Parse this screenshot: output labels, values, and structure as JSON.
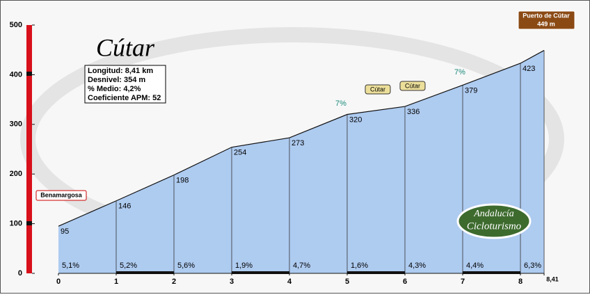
{
  "chart_data": {
    "type": "area",
    "title": "Cútar",
    "info": [
      "Longitud: 8,41 km",
      "Desnivel: 354 m",
      "% Medio: 4,2%",
      "Coeficiente APM: 52"
    ],
    "x": [
      0,
      1,
      2,
      3,
      4,
      5,
      6,
      7,
      8,
      8.41
    ],
    "series": [
      {
        "name": "Cútar",
        "color": "#aecbf0",
        "values": [
          95,
          146,
          198,
          254,
          273,
          320,
          336,
          379,
          423,
          449
        ]
      }
    ],
    "gradients": [
      {
        "value": 5.1,
        "label": "5,1%"
      },
      {
        "value": 5.2,
        "label": "5,2%"
      },
      {
        "value": 5.6,
        "label": "5,6%"
      },
      {
        "value": 1.9,
        "label": "1,9%"
      },
      {
        "value": 4.7,
        "label": "4,7%"
      },
      {
        "value": 1.6,
        "label": "1,6%"
      },
      {
        "value": 4.3,
        "label": "4,3%"
      },
      {
        "value": 4.4,
        "label": "4,4%"
      },
      {
        "value": 6.3,
        "label": "6,3%"
      }
    ],
    "xlim": [
      0,
      8.41
    ],
    "xticks": [
      0,
      1,
      2,
      3,
      4,
      5,
      6,
      7,
      8,
      {
        "value": 8.41,
        "label": "8,41"
      }
    ],
    "ylim": [
      0,
      500
    ],
    "yticks": [
      0,
      100,
      200,
      300,
      400,
      500
    ],
    "start_sign": "Benamargosa",
    "end_sign": [
      "Puerto de Cútar",
      "449 m"
    ],
    "town_signs": [
      "Cútar",
      "Cútar"
    ],
    "annotations": [
      "7%",
      "7%"
    ],
    "logo": [
      "Andalucía",
      "Cicloturismo"
    ]
  }
}
